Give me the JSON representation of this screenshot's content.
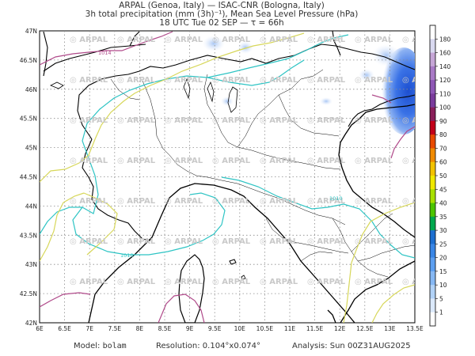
{
  "header": {
    "line1": "ARPAL (Genoa, Italy)  —  ISAC-CNR (Bologna, Italy)",
    "line2": "3h total precipitation (mm (3h)⁻¹), Mean Sea Level Pressure (hPa)",
    "line3": "18 UTC Tue 02 SEP  —  τ = 66h"
  },
  "map": {
    "lat_labels": [
      "47N",
      "46.5N",
      "46N",
      "45.5N",
      "45N",
      "44.5N",
      "44N",
      "43.5N",
      "43N",
      "42.5N",
      "42N"
    ],
    "lon_labels": [
      "6E",
      "6.5E",
      "7E",
      "7.5E",
      "8E",
      "8.5E",
      "9E",
      "9.5E",
      "10E",
      "10.5E",
      "11E",
      "11.5E",
      "12E",
      "12.5E",
      "13E",
      "13.5E"
    ],
    "watermark": "ARPAL",
    "isobar_labels": [
      "1014",
      "1010",
      "1012"
    ],
    "isobar_colors": {
      "1010": "#2ec4c4",
      "1012": "#d7d75a",
      "1014": "#b04a8a"
    }
  },
  "colorbar": {
    "levels": [
      "180",
      "160",
      "140",
      "120",
      "110",
      "100",
      "90",
      "80",
      "70",
      "60",
      "50",
      "45",
      "40",
      "35",
      "30",
      "25",
      "20",
      "15",
      "10",
      "5",
      "1"
    ],
    "colors": [
      "#ffffff",
      "#d9d9f0",
      "#c6a6d6",
      "#a97ac6",
      "#8e57b5",
      "#7a3c9c",
      "#8a1f5a",
      "#c2001a",
      "#e84a00",
      "#f08a00",
      "#f2c200",
      "#f0e800",
      "#a8e000",
      "#4cc400",
      "#00a84e",
      "#1d6fd0",
      "#3a86e6",
      "#5d9ff0",
      "#86b8f4",
      "#b1d2f7",
      "#dbe9fb",
      "#ffffff"
    ]
  },
  "footer": {
    "model_label": "Model:",
    "model_value": "bolam",
    "resolution": "Resolution: 0.104°x0.074°",
    "analysis": "Analysis: Sun 00Z31AUG2025"
  }
}
